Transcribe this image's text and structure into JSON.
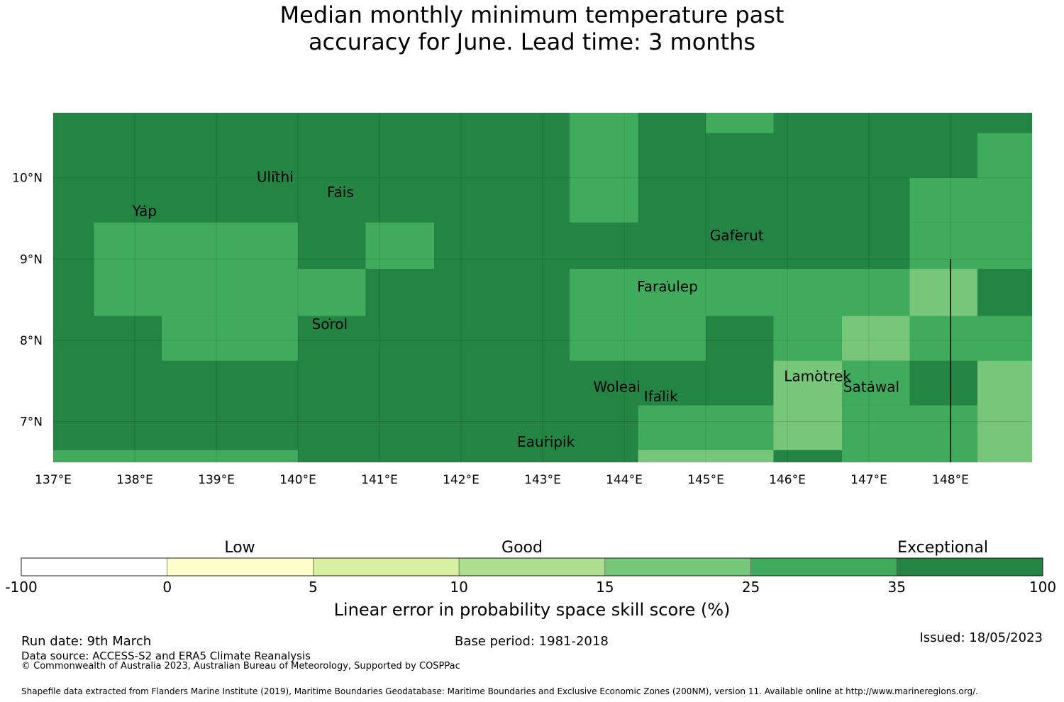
{
  "title": {
    "line1": "Median monthly minimum temperature past",
    "line2": "accuracy for June. Lead time: 3 months"
  },
  "map": {
    "lon_range": [
      137.0,
      149.0
    ],
    "lat_range": [
      6.5,
      10.8
    ],
    "lon_ticks": [
      {
        "value": 137,
        "label": "137°E"
      },
      {
        "value": 138,
        "label": "138°E"
      },
      {
        "value": 139,
        "label": "139°E"
      },
      {
        "value": 140,
        "label": "140°E"
      },
      {
        "value": 141,
        "label": "141°E"
      },
      {
        "value": 142,
        "label": "142°E"
      },
      {
        "value": 143,
        "label": "143°E"
      },
      {
        "value": 144,
        "label": "144°E"
      },
      {
        "value": 145,
        "label": "145°E"
      },
      {
        "value": 146,
        "label": "146°E"
      },
      {
        "value": 147,
        "label": "147°E"
      },
      {
        "value": 148,
        "label": "148°E"
      }
    ],
    "lat_ticks": [
      {
        "value": 7,
        "label": "7°N"
      },
      {
        "value": 8,
        "label": "8°N"
      },
      {
        "value": 9,
        "label": "9°N"
      },
      {
        "value": 10,
        "label": "10°N"
      }
    ],
    "background_category": 6,
    "cells": [
      {
        "lon": [
          137.5,
          140.0
        ],
        "lat": [
          8.3,
          9.45
        ],
        "cat": 5
      },
      {
        "lon": [
          138.33,
          140.0
        ],
        "lat": [
          7.75,
          8.3
        ],
        "cat": 5
      },
      {
        "lon": [
          140.0,
          140.83
        ],
        "lat": [
          8.3,
          8.88
        ],
        "cat": 5
      },
      {
        "lon": [
          140.83,
          141.67
        ],
        "lat": [
          8.88,
          9.45
        ],
        "cat": 5
      },
      {
        "lon": [
          143.33,
          144.17
        ],
        "lat": [
          9.45,
          10.8
        ],
        "cat": 5
      },
      {
        "lon": [
          145.0,
          145.83
        ],
        "lat": [
          10.55,
          10.8
        ],
        "cat": 5
      },
      {
        "lon": [
          148.33,
          149.0
        ],
        "lat": [
          9.45,
          10.55
        ],
        "cat": 5
      },
      {
        "lon": [
          147.5,
          149.0
        ],
        "lat": [
          8.88,
          9.45
        ],
        "cat": 5
      },
      {
        "lon": [
          147.5,
          148.33
        ],
        "lat": [
          9.45,
          10.0
        ],
        "cat": 5
      },
      {
        "lon": [
          143.33,
          147.5
        ],
        "lat": [
          8.3,
          8.88
        ],
        "cat": 5
      },
      {
        "lon": [
          143.33,
          145.0
        ],
        "lat": [
          7.75,
          8.3
        ],
        "cat": 5
      },
      {
        "lon": [
          145.83,
          146.67
        ],
        "lat": [
          7.75,
          8.3
        ],
        "cat": 5
      },
      {
        "lon": [
          147.5,
          149.0
        ],
        "lat": [
          7.75,
          8.3
        ],
        "cat": 5
      },
      {
        "lon": [
          146.67,
          147.5
        ],
        "lat": [
          7.2,
          7.75
        ],
        "cat": 5
      },
      {
        "lon": [
          144.17,
          145.83
        ],
        "lat": [
          6.65,
          7.2
        ],
        "cat": 5
      },
      {
        "lon": [
          146.67,
          148.33
        ],
        "lat": [
          6.5,
          7.2
        ],
        "cat": 5
      },
      {
        "lon": [
          137.0,
          140.0
        ],
        "lat": [
          6.5,
          6.65
        ],
        "cat": 5
      },
      {
        "lon": [
          147.5,
          148.33
        ],
        "lat": [
          8.3,
          8.88
        ],
        "cat": 4
      },
      {
        "lon": [
          146.67,
          147.5
        ],
        "lat": [
          7.75,
          8.3
        ],
        "cat": 4
      },
      {
        "lon": [
          145.83,
          146.67
        ],
        "lat": [
          6.65,
          7.75
        ],
        "cat": 4
      },
      {
        "lon": [
          148.33,
          149.0
        ],
        "lat": [
          6.5,
          7.75
        ],
        "cat": 4
      },
      {
        "lon": [
          144.17,
          145.83
        ],
        "lat": [
          6.5,
          6.65
        ],
        "cat": 4
      }
    ],
    "boundary_line_lon": 148.0,
    "boundary_line_lat": [
      6.5,
      9.0
    ],
    "places": [
      {
        "name": "Ulithi",
        "lon": 139.72,
        "lat": 9.95
      },
      {
        "name": "Fais",
        "lon": 140.52,
        "lat": 9.76
      },
      {
        "name": "Yap",
        "lon": 138.12,
        "lat": 9.53
      },
      {
        "name": "Gaferut",
        "lon": 145.38,
        "lat": 9.23
      },
      {
        "name": "Faraulep",
        "lon": 144.53,
        "lat": 8.6
      },
      {
        "name": "Sorol",
        "lon": 140.39,
        "lat": 8.14
      },
      {
        "name": "Woleai",
        "lon": 143.91,
        "lat": 7.37
      },
      {
        "name": "Ifalik",
        "lon": 144.45,
        "lat": 7.25
      },
      {
        "name": "Lamotrek",
        "lon": 146.37,
        "lat": 7.5
      },
      {
        "name": "Satawal",
        "lon": 147.03,
        "lat": 7.37
      },
      {
        "name": "Eauripik",
        "lon": 143.04,
        "lat": 6.69
      }
    ]
  },
  "colors": {
    "categories": [
      "#ffffff",
      "#ffffcc",
      "#d9f0a3",
      "#addd8e",
      "#78c679",
      "#41ab5d",
      "#238443"
    ]
  },
  "colorbar": {
    "tick_labels": [
      "-100",
      "0",
      "5",
      "10",
      "15",
      "25",
      "35",
      "100"
    ],
    "group_labels": [
      "Low",
      "Good",
      "Exceptional"
    ],
    "title": "Linear error in probability space skill score (%)"
  },
  "footer": {
    "run_date": "Run date: 9th March",
    "base_period": "Base period: 1981-2018",
    "issued": "Issued: 18/05/2023",
    "data_source": "Data source: ACCESS-S2 and ERA5 Climate Reanalysis",
    "copyright": "© Commonwealth of Australia 2023, Australian Bureau of Meteorology, Supported by COSPPac",
    "shapefile": "Shapefile data extracted from Flanders Marine Institute (2019), Maritime Boundaries Geodatabase: Maritime Boundaries and Exclusive Economic Zones (200NM), version 11. Available online at http://www.marineregions.org/."
  }
}
